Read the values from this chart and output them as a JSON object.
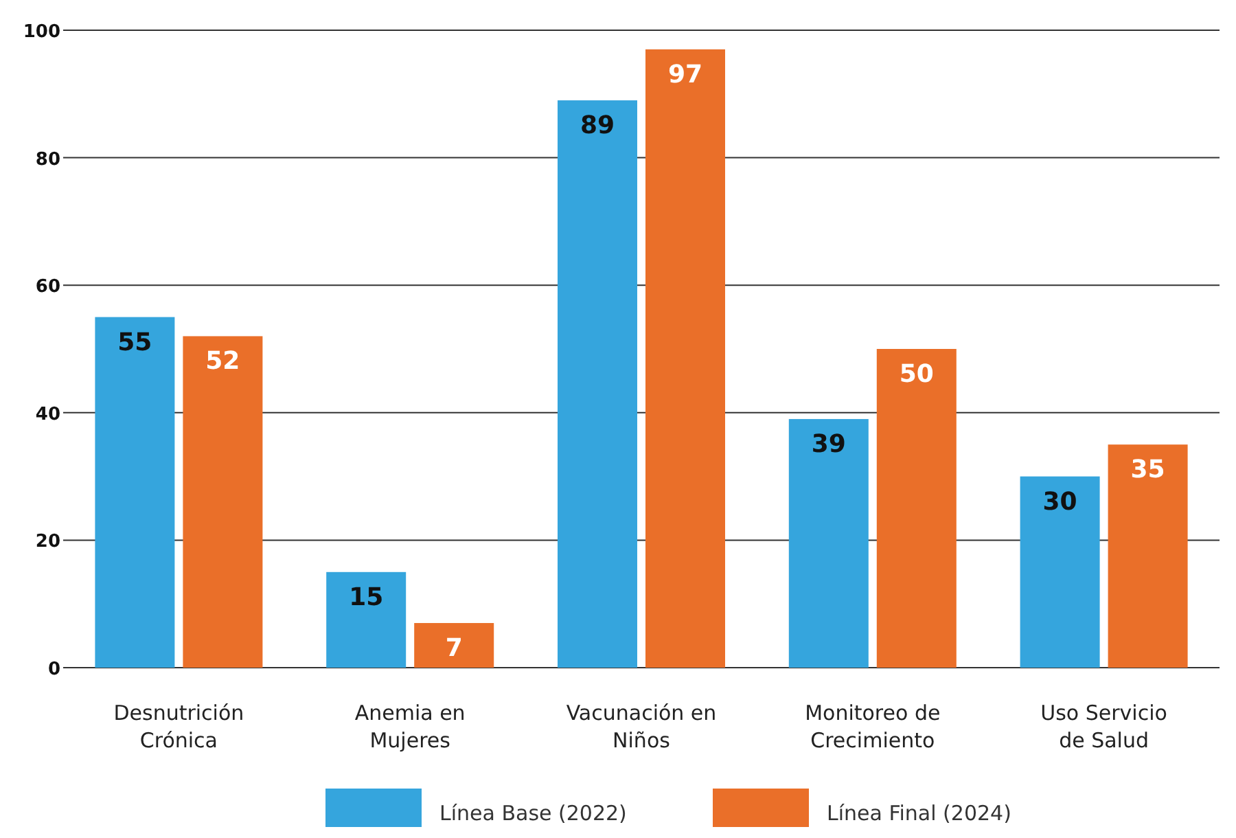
{
  "chart_data": {
    "type": "bar",
    "categories": [
      "Desnutrición Crónica",
      "Anemia en Mujeres",
      "Vacunación en Niños",
      "Monitoreo de Crecimiento",
      "Uso Servicio de Salud"
    ],
    "series": [
      {
        "name": "Línea Base (2022)",
        "color": "#35a5dd",
        "values": [
          55,
          15,
          89,
          39,
          30
        ]
      },
      {
        "name": "Línea Final (2024)",
        "color": "#ea6f29",
        "values": [
          52,
          7,
          97,
          50,
          35
        ]
      }
    ],
    "ylim": [
      0,
      100
    ],
    "yticks": [
      0,
      20,
      40,
      60,
      80,
      100
    ],
    "grid": "y",
    "legend": "bottom",
    "data_labels": true
  }
}
